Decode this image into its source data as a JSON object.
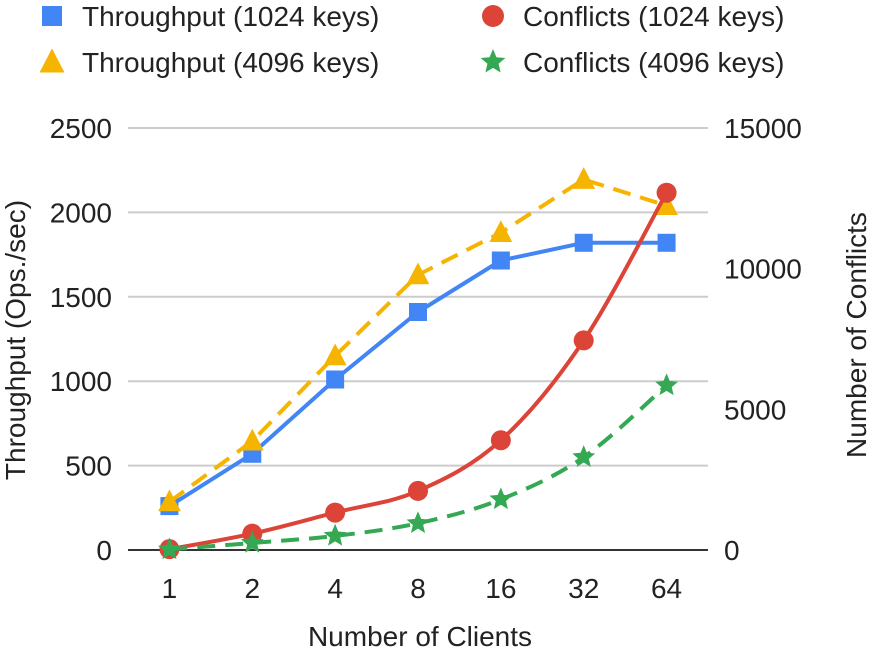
{
  "chart_data": {
    "type": "line",
    "xlabel": "Number of Clients",
    "ylabel_left": "Throughput (Ops./sec)",
    "ylabel_right": "Number of Conflicts",
    "categories": [
      "1",
      "2",
      "4",
      "8",
      "16",
      "32",
      "64"
    ],
    "ylim_left": [
      0,
      2500
    ],
    "yticks_left": [
      "0",
      "500",
      "1000",
      "1500",
      "2000",
      "2500"
    ],
    "ylim_right": [
      0,
      15000
    ],
    "yticks_right": [
      "0",
      "5000",
      "10000",
      "15000"
    ],
    "grid": true,
    "legend_position": "top",
    "series": [
      {
        "name": "Throughput (1024 keys)",
        "axis": "left",
        "color": "#4285f4",
        "marker": "square",
        "dashed": false,
        "values": [
          260,
          570,
          1010,
          1410,
          1715,
          1820,
          1820
        ]
      },
      {
        "name": "Throughput (4096 keys)",
        "axis": "left",
        "color": "#f4b400",
        "marker": "triangle",
        "dashed": true,
        "values": [
          285,
          645,
          1150,
          1630,
          1880,
          2195,
          2040
        ]
      },
      {
        "name": "Conflicts (1024 keys)",
        "axis": "right",
        "color": "#db4437",
        "marker": "circle",
        "dashed": false,
        "values": [
          30,
          580,
          1330,
          2100,
          3900,
          7450,
          12700
        ]
      },
      {
        "name": "Conflicts (4096 keys)",
        "axis": "right",
        "color": "#34a853",
        "marker": "star",
        "dashed": true,
        "values": [
          20,
          250,
          500,
          950,
          1800,
          3300,
          5850
        ]
      }
    ]
  }
}
